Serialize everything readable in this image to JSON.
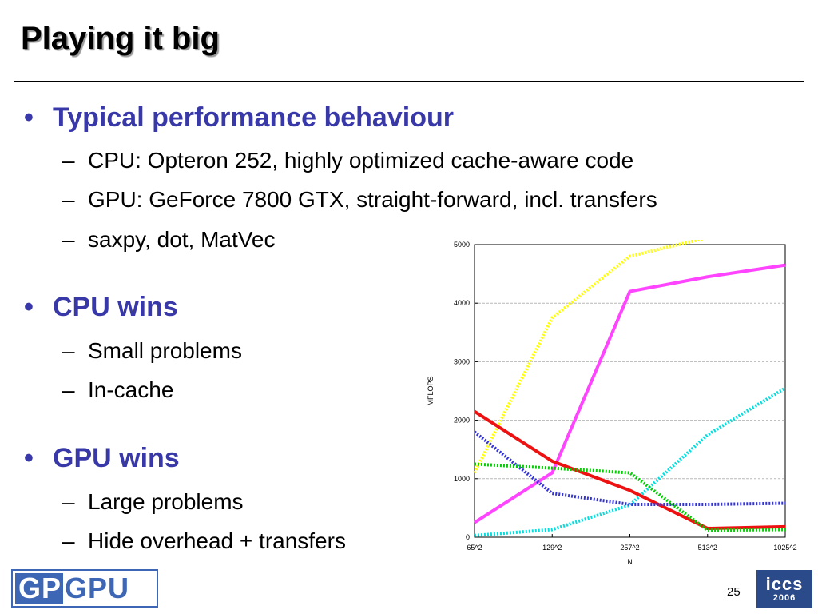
{
  "slide": {
    "title": "Playing it big",
    "number": "25",
    "bullets": [
      {
        "text": "Typical performance behaviour",
        "subs": [
          "CPU: Opteron 252, highly optimized cache-aware code",
          "GPU: GeForce 7800 GTX, straight-forward, incl. transfers",
          "saxpy, dot, MatVec"
        ]
      },
      {
        "text": "CPU wins",
        "subs": [
          "Small problems",
          "In-cache"
        ]
      },
      {
        "text": "GPU wins",
        "subs": [
          "Large problems",
          "Hide overhead + transfers"
        ]
      }
    ],
    "bullet_glyph": "•",
    "dash_glyph": "–"
  },
  "logos": {
    "gpgpu_left": "GP",
    "gpgpu_right": "GPU",
    "iccs_name": "iccs",
    "iccs_year": "2006"
  },
  "chart_data": {
    "type": "line",
    "categories": [
      "65^2",
      "129^2",
      "257^2",
      "513^2",
      "1025^2"
    ],
    "xlabel": "N",
    "ylabel": "MFLOPS",
    "ylim": [
      0,
      5000
    ],
    "yticks": [
      0,
      1000,
      2000,
      3000,
      4000,
      5000
    ],
    "grid": true,
    "legend": "none",
    "series": [
      {
        "color": "#ffff00",
        "dashed": true,
        "values": [
          1100,
          3750,
          4800,
          5120,
          5150
        ]
      },
      {
        "color": "#ff44ff",
        "dashed": false,
        "values": [
          250,
          1100,
          4200,
          4450,
          4650
        ]
      },
      {
        "color": "#00e0e0",
        "dashed": true,
        "values": [
          30,
          130,
          550,
          1750,
          2550
        ]
      },
      {
        "color": "#ee1111",
        "dashed": false,
        "values": [
          2150,
          1300,
          800,
          150,
          180
        ]
      },
      {
        "color": "#3333dd",
        "dashed": true,
        "values": [
          1800,
          750,
          560,
          560,
          580
        ]
      },
      {
        "color": "#00d000",
        "dashed": true,
        "values": [
          1250,
          1180,
          1100,
          120,
          130
        ]
      }
    ]
  }
}
